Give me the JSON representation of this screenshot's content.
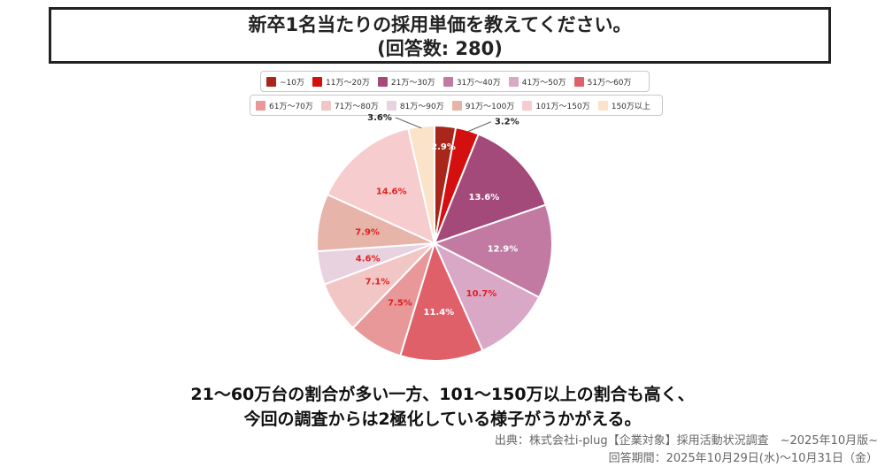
{
  "header": {
    "title_line1": "新卒1名当たりの採用単価を教えてください。",
    "title_line2": "(回答数: 280)"
  },
  "chart_data": {
    "type": "pie",
    "categories": [
      "~10万",
      "11万～20万",
      "21万～30万",
      "31万～40万",
      "41万～50万",
      "51万～60万",
      "61万～70万",
      "71万～80万",
      "81万～90万",
      "91万～100万",
      "101万～150万",
      "150万以上"
    ],
    "values": [
      2.9,
      3.2,
      13.6,
      12.9,
      10.7,
      11.4,
      7.5,
      7.1,
      4.6,
      7.9,
      14.6,
      3.6
    ],
    "labels": [
      "2.9%",
      "3.2%",
      "13.6%",
      "12.9%",
      "10.7%",
      "11.4%",
      "7.5%",
      "7.1%",
      "4.6%",
      "7.9%",
      "14.6%",
      "3.6%"
    ],
    "colors": [
      "#a8261a",
      "#d40f0f",
      "#a44a7a",
      "#c27aa2",
      "#d8a8c6",
      "#e0606a",
      "#e89898",
      "#f3c6c6",
      "#e8d2e0",
      "#e6b4a8",
      "#f7cccf",
      "#fbe3c9"
    ],
    "label_colors": [
      "#ffffff",
      "#222222",
      "#ffffff",
      "#ffffff",
      "#e02020",
      "#ffffff",
      "#e02020",
      "#e02020",
      "#e02020",
      "#e02020",
      "#e02020",
      "#222222"
    ],
    "start": "top",
    "direction": "clockwise",
    "legend_position": "top"
  },
  "summary": {
    "line1": "21～60万台の割合が多い一方、101～150万以上の割合も高く、",
    "line2": "今回の調査からは2極化している様子がうかがえる。"
  },
  "source": {
    "line1": "出典：株式会社i-plug【企業対象】採用活動状況調査　~2025年10月版~",
    "line2": "回答期間：2025年10月29日(水)～10月31日（金）"
  }
}
